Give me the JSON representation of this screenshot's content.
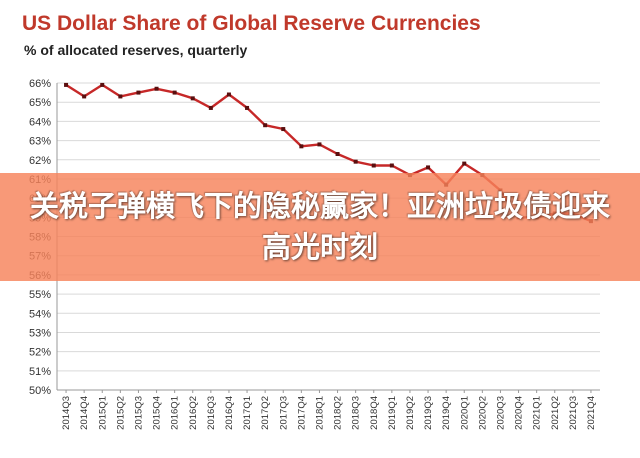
{
  "chart_data": {
    "type": "line",
    "title": "US Dollar Share of Global  Reserve Currencies",
    "subtitle": "% of allocated reserves, quarterly",
    "xlabel": "",
    "ylabel": "",
    "ylim": [
      50,
      66
    ],
    "y_ticks": [
      "50%",
      "51%",
      "52%",
      "53%",
      "54%",
      "55%",
      "56%",
      "57%",
      "58%",
      "59%",
      "60%",
      "61%",
      "62%",
      "63%",
      "64%",
      "65%",
      "66%"
    ],
    "grid": "horizontal",
    "line_color": "#c62828",
    "categories": [
      "2014Q3",
      "2014Q4",
      "2015Q1",
      "2015Q2",
      "2015Q3",
      "2015Q4",
      "2016Q1",
      "2016Q2",
      "2016Q3",
      "2016Q4",
      "2017Q1",
      "2017Q2",
      "2017Q3",
      "2017Q4",
      "2018Q1",
      "2018Q2",
      "2018Q3",
      "2018Q4",
      "2019Q1",
      "2019Q2",
      "2019Q3",
      "2019Q4",
      "2020Q1",
      "2020Q2",
      "2020Q3",
      "2020Q4",
      "2021Q1",
      "2021Q2",
      "2021Q3",
      "2021Q4"
    ],
    "series": [
      {
        "values": [
          65.9,
          65.3,
          65.9,
          65.3,
          65.5,
          65.7,
          65.5,
          65.2,
          64.7,
          65.4,
          64.7,
          63.8,
          63.6,
          62.7,
          62.8,
          62.3,
          61.9,
          61.7,
          61.7,
          61.2,
          61.6,
          60.7,
          61.8,
          61.2,
          60.4,
          59.0,
          59.0,
          59.2,
          59.2,
          58.8
        ]
      }
    ]
  },
  "overlay": {
    "headline": "关税子弹横飞下的隐秘赢家！亚洲垃圾债迎来高光时刻"
  }
}
